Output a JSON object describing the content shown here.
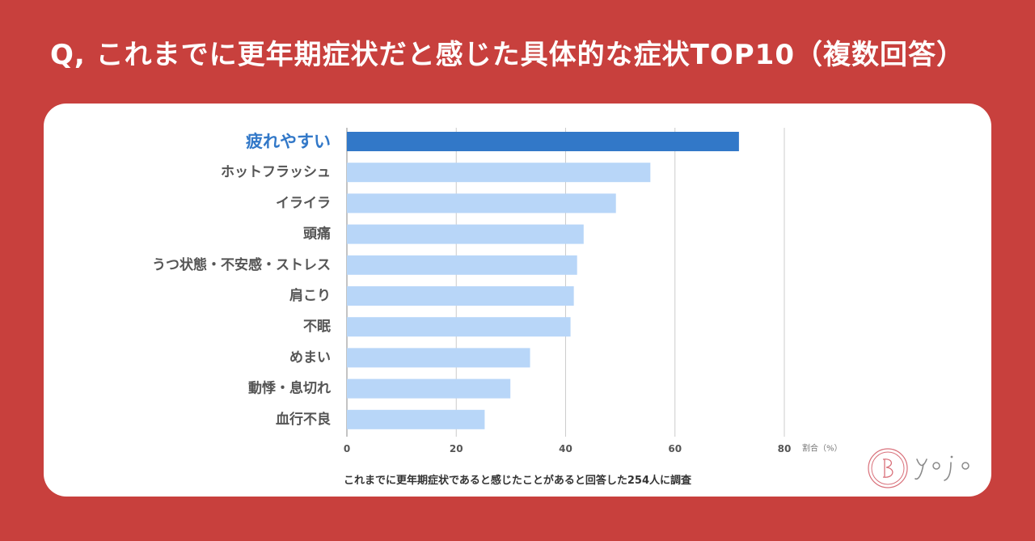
{
  "title": "Q, これまでに更年期症状だと感じた具体的な症状TOP10（複数回答）",
  "footnote": "これまでに更年期症状であると感じたことがあると回答した254人に調査",
  "logo_text": "yojo",
  "colors": {
    "background": "#c8403d",
    "card": "#ffffff",
    "highlight_bar": "#3278c8",
    "bar": "#b8d6f8",
    "highlight_label": "#3278c8",
    "label": "#555555",
    "grid": "#cccccc"
  },
  "chart_data": {
    "type": "bar",
    "orientation": "horizontal",
    "title": "Q, これまでに更年期症状だと感じた具体的な症状TOP10（複数回答）",
    "xlabel": "割合（%）",
    "ylabel": "",
    "categories": [
      "疲れやすい",
      "ホットフラッシュ",
      "イライラ",
      "頭痛",
      "うつ状態・不安感・ストレス",
      "肩こり",
      "不眠",
      "めまい",
      "動悸・息切れ",
      "血行不良"
    ],
    "values": [
      71.7,
      55.5,
      49.2,
      43.3,
      42.1,
      41.5,
      40.9,
      33.5,
      29.9,
      25.2
    ],
    "highlight_index": 0,
    "xlim": [
      0,
      80
    ],
    "xticks": [
      0,
      20,
      40,
      60,
      80
    ],
    "grid": true
  }
}
